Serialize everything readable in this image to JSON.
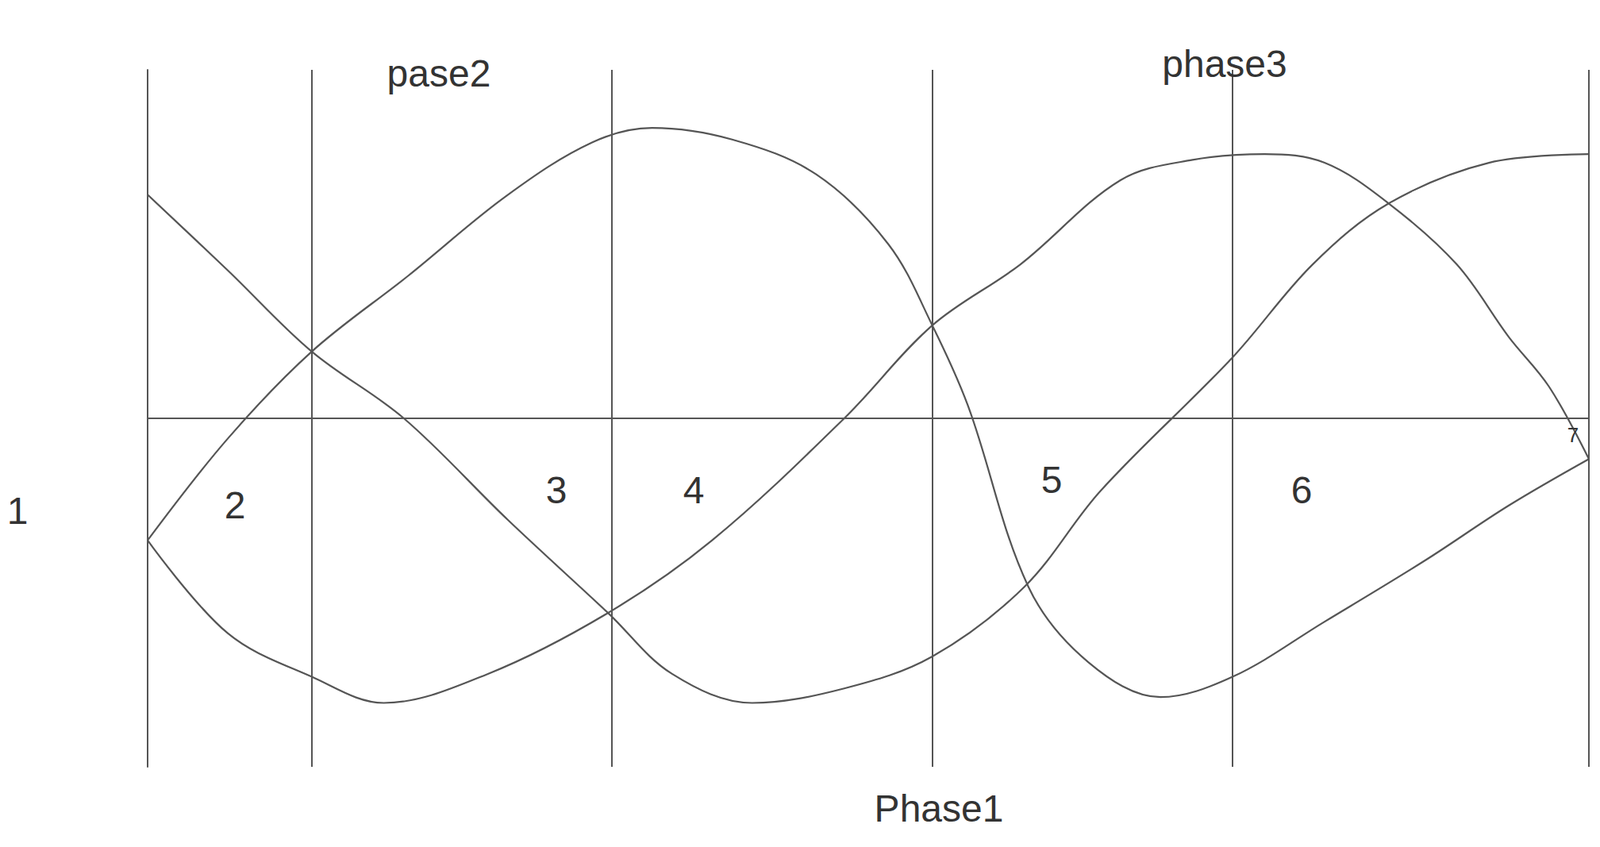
{
  "chart_data": {
    "type": "line",
    "xlim": [
      0,
      360
    ],
    "ylim": [
      -1.2,
      1.2
    ],
    "xticks": [
      0,
      41,
      116,
      196,
      271,
      360
    ],
    "yticks": [
      0
    ],
    "grid": true,
    "tick_labels": false,
    "series": [
      {
        "color": "#555555",
        "line_style": "solid",
        "x": [
          0,
          20,
          41,
          64,
          90,
          115,
          131,
          151,
          174,
          196,
          219,
          238,
          271,
          291,
          310,
          335,
          360
        ],
        "values": [
          0.77,
          0.51,
          0.23,
          0,
          -0.35,
          -0.67,
          -0.88,
          -0.98,
          -0.93,
          -0.82,
          -0.58,
          -0.25,
          0.21,
          0.53,
          0.74,
          0.88,
          0.91
        ]
      },
      {
        "color": "#555555",
        "line_style": "solid",
        "x": [
          0,
          20,
          41,
          65,
          90,
          111,
          126,
          146,
          167,
          185,
          196,
          205,
          220,
          235,
          253,
          271,
          294,
          319,
          340,
          360
        ],
        "values": [
          -0.42,
          -0.07,
          0.23,
          0.49,
          0.77,
          0.95,
          1.0,
          0.96,
          0.84,
          0.6,
          0.32,
          0.04,
          -0.58,
          -0.84,
          -0.96,
          -0.89,
          -0.7,
          -0.49,
          -0.3,
          -0.14
        ]
      },
      {
        "color": "#555555",
        "line_style": "solid",
        "x": [
          0,
          20,
          41,
          59,
          85,
          115,
          141,
          174,
          196,
          218,
          243,
          261,
          279,
          294,
          310,
          327,
          340,
          350,
          360
        ],
        "values": [
          -0.42,
          -0.74,
          -0.89,
          -0.98,
          -0.88,
          -0.67,
          -0.42,
          0,
          0.32,
          0.53,
          0.82,
          0.89,
          0.91,
          0.88,
          0.74,
          0.53,
          0.28,
          0.11,
          -0.14
        ]
      }
    ],
    "annotations": [
      "pase2",
      "phase3",
      "Phase1",
      "1",
      "2",
      "3",
      "4",
      "5",
      "6",
      "7"
    ]
  }
}
